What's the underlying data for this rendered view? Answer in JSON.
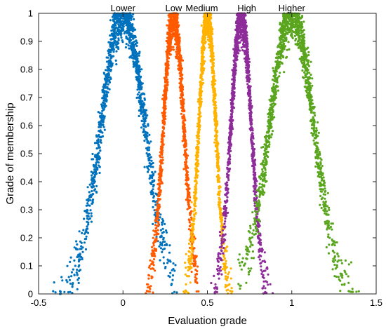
{
  "chart_data": {
    "type": "scatter",
    "xlabel": "Evaluation grade",
    "ylabel": "Grade of membership",
    "xlim": [
      -0.5,
      1.5
    ],
    "ylim": [
      0,
      1
    ],
    "xticks": [
      -0.5,
      0,
      0.5,
      1,
      1.5
    ],
    "xtick_labels": [
      "-0.5",
      "0",
      "0.5",
      "1",
      "1.5"
    ],
    "yticks": [
      0,
      0.1,
      0.2,
      0.3,
      0.4,
      0.5,
      0.6,
      0.7,
      0.8,
      0.9,
      1
    ],
    "ytick_labels": [
      "0",
      "0.1",
      "0.2",
      "0.3",
      "0.4",
      "0.5",
      "0.6",
      "0.7",
      "0.8",
      "0.9",
      "1"
    ],
    "grid": false,
    "series": [
      {
        "name": "Lower",
        "color": "#0072BD",
        "peak_x": 0,
        "peak_y": 1,
        "sigma": 0.13,
        "range": [
          -0.42,
          0.32
        ]
      },
      {
        "name": "Low",
        "color": "#FF5A00",
        "peak_x": 0.3,
        "peak_y": 1,
        "sigma": 0.06,
        "range": [
          0.13,
          0.45
        ]
      },
      {
        "name": "Medium",
        "color": "#FFB300",
        "peak_x": 0.5,
        "peak_y": 1,
        "sigma": 0.05,
        "range": [
          0.35,
          0.65
        ]
      },
      {
        "name": "High",
        "color": "#8E2C9A",
        "peak_x": 0.7,
        "peak_y": 1,
        "sigma": 0.06,
        "range": [
          0.52,
          0.9
        ]
      },
      {
        "name": "Higher",
        "color": "#5AA51E",
        "peak_x": 1,
        "peak_y": 1,
        "sigma": 0.13,
        "range": [
          0.68,
          1.42
        ]
      }
    ]
  }
}
